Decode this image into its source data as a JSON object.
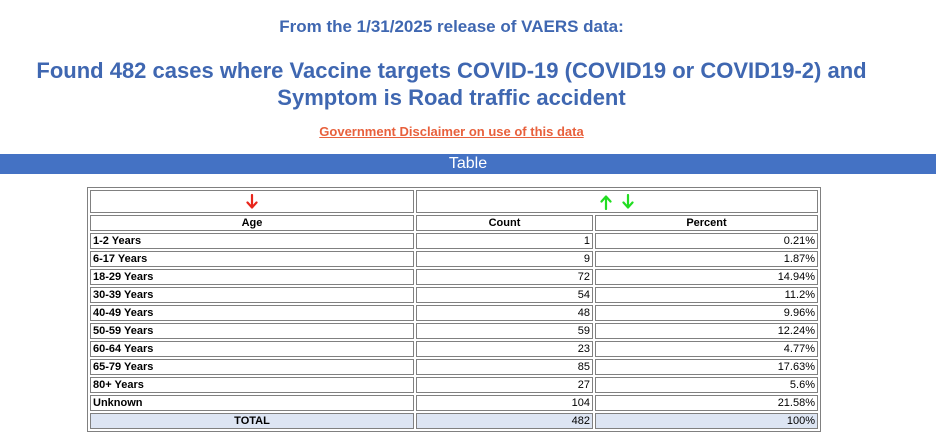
{
  "header": {
    "release_line": "From the 1/31/2025 release of VAERS data:",
    "headline": "Found 482 cases where Vaccine targets COVID-19 (COVID19 or COVID19-2) and Symptom is Road traffic accident",
    "disclaimer_link": "Government Disclaimer on use of this data"
  },
  "section_bar": "Table",
  "colors": {
    "title": "#3f67b1",
    "bar": "#4472c4",
    "link": "#e8603c",
    "sort_active": "#e8261c",
    "sort_inactive": "#22dd22",
    "total_bg": "#dde5f3"
  },
  "sort_icons": {
    "age": "arrow-down-icon",
    "count": "arrow-up-down-icon"
  },
  "table": {
    "headers": {
      "age": "Age",
      "count": "Count",
      "percent": "Percent"
    },
    "rows": [
      {
        "age": "1-2 Years",
        "count": "1",
        "percent": "0.21%"
      },
      {
        "age": "6-17 Years",
        "count": "9",
        "percent": "1.87%"
      },
      {
        "age": "18-29 Years",
        "count": "72",
        "percent": "14.94%"
      },
      {
        "age": "30-39 Years",
        "count": "54",
        "percent": "11.2%"
      },
      {
        "age": "40-49 Years",
        "count": "48",
        "percent": "9.96%"
      },
      {
        "age": "50-59 Years",
        "count": "59",
        "percent": "12.24%"
      },
      {
        "age": "60-64 Years",
        "count": "23",
        "percent": "4.77%"
      },
      {
        "age": "65-79 Years",
        "count": "85",
        "percent": "17.63%"
      },
      {
        "age": "80+ Years",
        "count": "27",
        "percent": "5.6%"
      },
      {
        "age": "Unknown",
        "count": "104",
        "percent": "21.58%"
      }
    ],
    "total": {
      "label": "TOTAL",
      "count": "482",
      "percent": "100%"
    }
  }
}
